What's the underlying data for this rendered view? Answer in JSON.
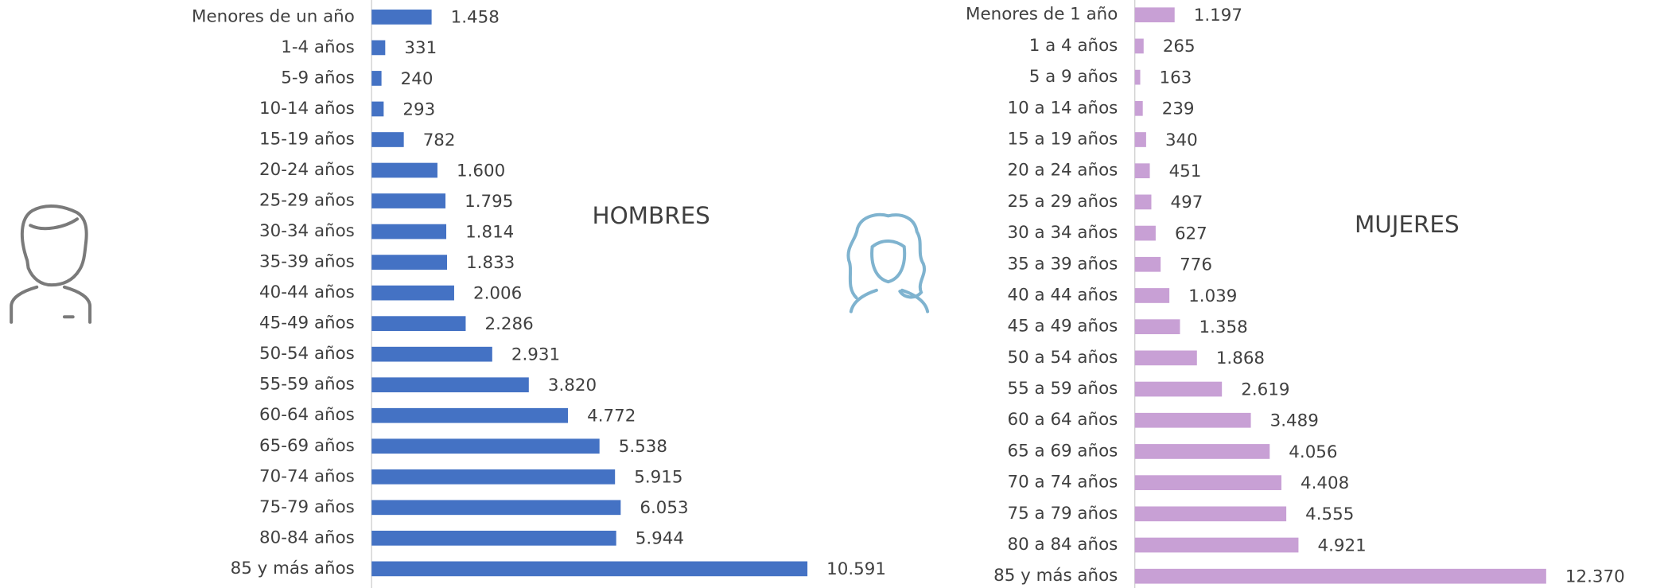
{
  "chart_data": [
    {
      "type": "bar",
      "orientation": "horizontal",
      "title": "HOMBRES",
      "color": "#4472c4",
      "categories": [
        "Menores de un año",
        "1-4 años",
        "5-9 años",
        "10-14 años",
        "15-19 años",
        "20-24 años",
        "25-29 años",
        "30-34 años",
        "35-39 años",
        "40-44 años",
        "45-49 años",
        "50-54 años",
        "55-59 años",
        "60-64 años",
        "65-69 años",
        "70-74 años",
        "75-79 años",
        "80-84 años",
        "85 y más años"
      ],
      "values": [
        1458,
        331,
        240,
        293,
        782,
        1600,
        1795,
        1814,
        1833,
        2006,
        2286,
        2931,
        3820,
        4772,
        5538,
        5915,
        6053,
        5944,
        10591
      ],
      "value_labels": [
        "1.458",
        "331",
        "240",
        "293",
        "782",
        "1.600",
        "1.795",
        "1.814",
        "1.833",
        "2.006",
        "2.286",
        "2.931",
        "3.820",
        "4.772",
        "5.538",
        "5.915",
        "6.053",
        "5.944",
        "10.591"
      ]
    },
    {
      "type": "bar",
      "orientation": "horizontal",
      "title": "MUJERES",
      "color": "#c8a0d5",
      "categories": [
        "Menores de 1 año",
        "1 a 4 años",
        "5 a 9 años",
        "10 a 14 años",
        "15 a 19 años",
        "20 a 24 años",
        "25 a 29 años",
        "30 a 34 años",
        "35 a 39 años",
        "40 a 44 años",
        "45 a 49 años",
        "50 a 54 años",
        "55 a 59 años",
        "60 a 64 años",
        "65 a 69 años",
        "70 a 74 años",
        "75 a 79 años",
        "80 a 84 años",
        "85 y más años"
      ],
      "values": [
        1197,
        265,
        163,
        239,
        340,
        451,
        497,
        627,
        776,
        1039,
        1358,
        1868,
        2619,
        3489,
        4056,
        4408,
        4555,
        4921,
        12370
      ],
      "value_labels": [
        "1.197",
        "265",
        "163",
        "239",
        "340",
        "451",
        "497",
        "627",
        "776",
        "1.039",
        "1.358",
        "1.868",
        "2.619",
        "3.489",
        "4.056",
        "4.408",
        "4.555",
        "4.921",
        "12.370"
      ]
    }
  ]
}
